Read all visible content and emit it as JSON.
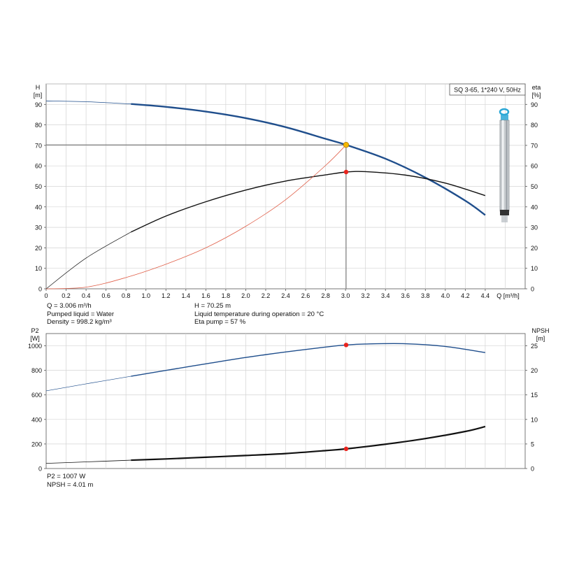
{
  "chart_data": [
    {
      "type": "line",
      "title": "SQ 3-65, 1*240 V, 50Hz",
      "xlabel": "Q [m³/h]",
      "ylabel_left_top": "H",
      "ylabel_left_unit": "[m]",
      "ylabel_right_top": "eta",
      "ylabel_right_unit": "[%]",
      "xlim": [
        0,
        4.8
      ],
      "ylim": [
        0,
        100
      ],
      "x_ticks": [
        "0",
        "0.2",
        "0.4",
        "0.6",
        "0.8",
        "1.0",
        "1.2",
        "1.4",
        "1.6",
        "1.8",
        "2.0",
        "2.2",
        "2.4",
        "2.6",
        "2.8",
        "3.0",
        "3.2",
        "3.4",
        "3.6",
        "3.8",
        "4.0",
        "4.2",
        "4.4"
      ],
      "x_tick_values": [
        0,
        0.2,
        0.4,
        0.6,
        0.8,
        1.0,
        1.2,
        1.4,
        1.6,
        1.8,
        2.0,
        2.2,
        2.4,
        2.6,
        2.8,
        3.0,
        3.2,
        3.4,
        3.6,
        3.8,
        4.0,
        4.2,
        4.4
      ],
      "y_ticks": [
        "0",
        "10",
        "20",
        "30",
        "40",
        "50",
        "60",
        "70",
        "80",
        "90"
      ],
      "y_tick_values": [
        0,
        10,
        20,
        30,
        40,
        50,
        60,
        70,
        80,
        90
      ],
      "grid": true,
      "series": [
        {
          "key": "head",
          "color": "#1f4e8c",
          "x": [
            0,
            0.4,
            0.85,
            1.2,
            1.6,
            2.0,
            2.4,
            2.8,
            3.006,
            3.4,
            3.8,
            4.2,
            4.4
          ],
          "values": [
            91.7,
            91.3,
            90.2,
            88.8,
            86.5,
            83.3,
            78.9,
            73.2,
            70.25,
            63.5,
            54.3,
            43.0,
            36.0
          ],
          "thin_until": 0.85
        },
        {
          "key": "eta",
          "color": "#111111",
          "x": [
            0,
            0.4,
            0.85,
            1.2,
            1.6,
            2.0,
            2.4,
            2.8,
            3.006,
            3.2,
            3.6,
            4.0,
            4.4
          ],
          "values": [
            0,
            15,
            27.7,
            35.5,
            42.5,
            48.2,
            52.6,
            55.6,
            57,
            57.2,
            55.5,
            51.6,
            45.5
          ],
          "thin_until": 0.85
        },
        {
          "key": "system",
          "color": "#e0604a",
          "x": [
            0,
            0.4,
            0.8,
            1.2,
            1.6,
            2.0,
            2.4,
            2.8,
            3.006
          ],
          "values": [
            0,
            0.8,
            5.5,
            12,
            20,
            30.5,
            43.5,
            60.2,
            70.25
          ]
        }
      ],
      "operating_point": {
        "x": 3.006,
        "y": 70.25,
        "eta": 57
      }
    },
    {
      "type": "line",
      "ylabel_left_top": "P2",
      "ylabel_left_unit": "[W]",
      "ylabel_right_top": "NPSH",
      "ylabel_right_unit": "[m]",
      "xlim": [
        0,
        4.8
      ],
      "ylim": [
        0,
        1100
      ],
      "y_ticks": [
        "0",
        "200",
        "400",
        "600",
        "800",
        "1000"
      ],
      "y_tick_values": [
        0,
        200,
        400,
        600,
        800,
        1000
      ],
      "y2_ticks": [
        "0",
        "5",
        "10",
        "15",
        "20",
        "25"
      ],
      "y2_tick_values": [
        0,
        5,
        10,
        15,
        20,
        25
      ],
      "ylim2": [
        0,
        27.5
      ],
      "grid": true,
      "series": [
        {
          "key": "p2",
          "color": "#1f4e8c",
          "x": [
            0,
            0.4,
            0.85,
            1.2,
            1.6,
            2.0,
            2.4,
            2.8,
            3.006,
            3.2,
            3.6,
            4.0,
            4.4
          ],
          "values": [
            633,
            690,
            752,
            800,
            853,
            905,
            950,
            990,
            1007,
            1015,
            1017,
            995,
            945
          ],
          "thin_until": 0.85
        },
        {
          "key": "npsh",
          "color": "#111111",
          "axis": "y2",
          "x": [
            0,
            0.4,
            0.85,
            1.2,
            1.6,
            2.0,
            2.4,
            2.8,
            3.006,
            3.4,
            3.8,
            4.2,
            4.4
          ],
          "values": [
            1.05,
            1.35,
            1.7,
            1.95,
            2.3,
            2.65,
            3.05,
            3.65,
            4.01,
            4.95,
            6.1,
            7.55,
            8.55
          ],
          "thin_until": 0.85
        }
      ],
      "operating_point": {
        "x": 3.006,
        "p2": 1007,
        "npsh": 4.01
      }
    }
  ],
  "info_top_left": [
    "Q = 3.006 m³/h",
    "Pumped liquid = Water",
    "Density = 998.2 kg/m³"
  ],
  "info_top_right": [
    "H = 70.25 m",
    "Liquid temperature during operation = 20 °C",
    "Eta pump = 57 %"
  ],
  "info_bottom": [
    "P2 = 1007 W",
    "NPSH = 4.01 m"
  ],
  "colors": {
    "grid": "#d4d4d4",
    "axis": "#555555",
    "marker": "#e8231d",
    "operating_marker": "#f4b800"
  },
  "icon": "submersible-pump-image"
}
